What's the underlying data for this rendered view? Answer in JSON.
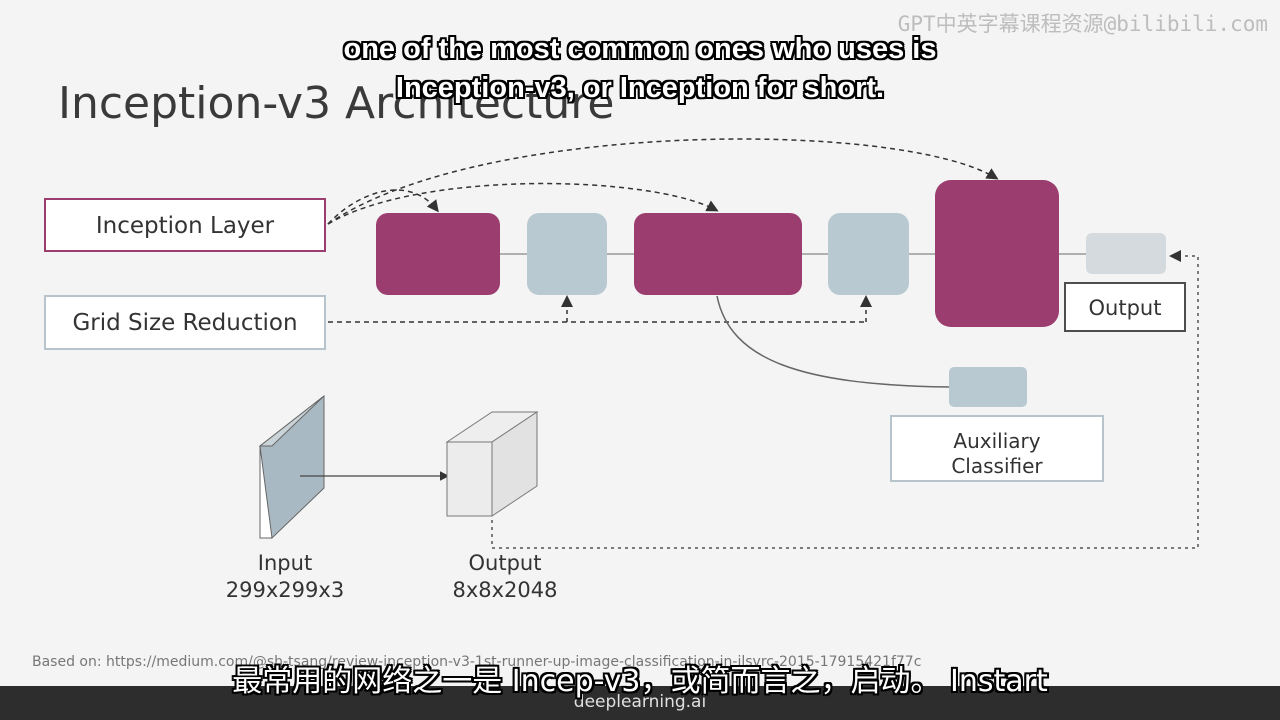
{
  "watermark": "GPT中英字幕课程资源@bilibili.com",
  "slide_title": "Inception-v3 Architecture",
  "legend": {
    "inception_layer": "Inception Layer",
    "grid_size_reduction": "Grid Size Reduction"
  },
  "output_label": "Output",
  "auxiliary": {
    "line1": "Auxiliary",
    "line2": "Classifier"
  },
  "input_cube": {
    "label": "Input",
    "dims": "299x299x3"
  },
  "output_cube": {
    "label": "Output",
    "dims": "8x8x2048"
  },
  "source_text": "Based on: https://medium.com/@sh-tsang/review-inception-v3-1st-runner-up-image-classification-in-ilsvrc-2015-17915421f77c",
  "subtitle_en": {
    "line1": "one of the most common ones who uses is",
    "line2": "Inception-v3, or Inception for short."
  },
  "subtitle_cn": "最常用的网络之一是 Incep-v3，或简而言之，启动。 Instart",
  "brand": "deeplearning.ai",
  "colors": {
    "inception": "#9b3d6f",
    "reduction": "#b9c9d1",
    "background": "#f4f4f4"
  }
}
